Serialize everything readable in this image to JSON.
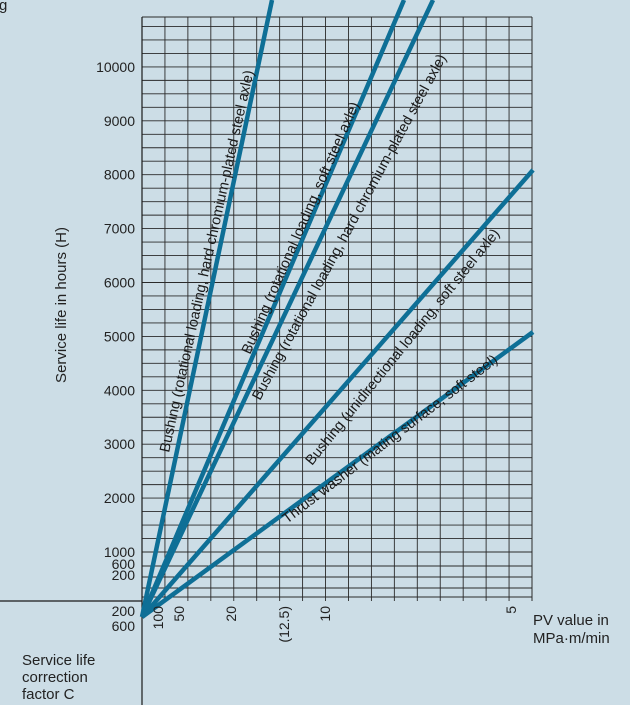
{
  "chart_data": {
    "type": "line",
    "ylabel": "Service life in hours (H)",
    "xlabel": "PV value in MPa·m/min",
    "bottom_label": "Service life correction factor C",
    "header_fragment": "g",
    "y_ticks": [
      1000,
      2000,
      3000,
      4000,
      5000,
      6000,
      7000,
      8000,
      9000,
      10000
    ],
    "y_small_ticks": [
      1000,
      600,
      200
    ],
    "y_lower_ticks": [
      200,
      600
    ],
    "x_ticks": [
      "100",
      "50",
      "20",
      "(12.5)",
      "10",
      "5"
    ],
    "ylim": [
      0,
      10800
    ],
    "series": [
      {
        "name": "Bushing (rotational loading, hard chromium-plated steel axle)",
        "points": [
          [
            0,
            0
          ],
          [
            1,
            10800
          ]
        ]
      },
      {
        "name": "Bushing (rotational loading, soft steel axle)",
        "points": [
          [
            0,
            0
          ],
          [
            1,
            10800
          ]
        ]
      },
      {
        "name": "Bushing (rotational loading, hard chromium-plated steel axle)",
        "points": [
          [
            0,
            0
          ],
          [
            1,
            10800
          ]
        ]
      },
      {
        "name": "Bushing (unidirectional loading, soft steel axle)",
        "points": [
          [
            0,
            0
          ],
          [
            1,
            8100
          ]
        ]
      },
      {
        "name": "Thrust washer (mating surface, soft steel)",
        "points": [
          [
            0,
            0
          ],
          [
            1,
            5100
          ]
        ]
      }
    ]
  }
}
